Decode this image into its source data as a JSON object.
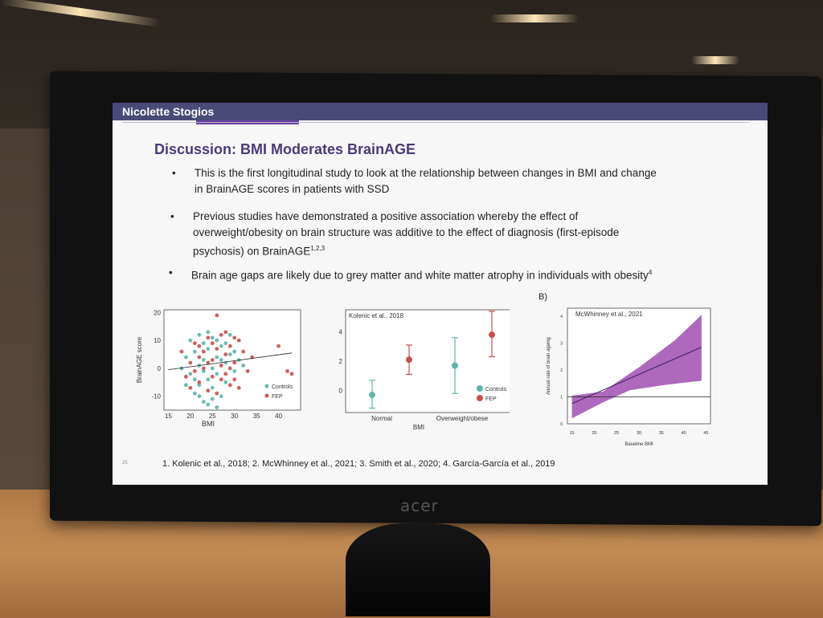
{
  "monitor": {
    "brand": "acer"
  },
  "slide": {
    "presenter": "Nicolette Stogios",
    "title": "Discussion: BMI Moderates BrainAGE",
    "bullets": [
      {
        "line1": "This is the first longitudinal study to look at the relationship between changes in BMI and change",
        "line2": "in BrainAGE scores in patients with SSD"
      },
      {
        "line1": "Previous studies have demonstrated a positive association whereby the effect of",
        "line2": "overweight/obesity on brain structure was additive to the effect of diagnosis (first-episode",
        "line3": "psychosis) on BrainAGE",
        "sup": "1,2,3"
      },
      {
        "line1": "Brain age gaps are likely due to grey matter and white matter atrophy in individuals with obesity",
        "sup": "4"
      }
    ],
    "panel_b_label": "B)",
    "footnote": "1.   Kolenic et al., 2018; 2. McWhinney et al., 2021; 3. Smith et al., 2020; 4. García-García et al., 2019",
    "page_number": "25"
  },
  "colors": {
    "controls": "#5fb3ad",
    "fep": "#c8504a",
    "band": "#a04fb0",
    "title": "#4b3a7a"
  },
  "chart_data": [
    {
      "type": "scatter",
      "ylabel": "BrainAGE score",
      "xlabel": "BMI",
      "xticks": [
        "15",
        "20",
        "25",
        "30",
        "35",
        "40"
      ],
      "yticks": [
        "20",
        "10",
        "0",
        "-10"
      ],
      "xlim": [
        14,
        45
      ],
      "ylim": [
        -15,
        21
      ],
      "legend": [
        "Controls",
        "FEP"
      ],
      "trend": [
        [
          15,
          -0.5
        ],
        [
          43,
          5.5
        ]
      ],
      "series": [
        {
          "name": "Controls",
          "points": [
            [
              19,
              4
            ],
            [
              20,
              -2
            ],
            [
              21,
              6
            ],
            [
              21,
              -9
            ],
            [
              22,
              1
            ],
            [
              22,
              -6
            ],
            [
              23,
              9
            ],
            [
              23,
              3
            ],
            [
              23,
              -12
            ],
            [
              24,
              -4
            ],
            [
              24,
              7
            ],
            [
              25,
              0
            ],
            [
              25,
              11
            ],
            [
              25,
              -7
            ],
            [
              26,
              4
            ],
            [
              26,
              -2
            ],
            [
              27,
              8
            ],
            [
              27,
              -10
            ],
            [
              28,
              2
            ],
            [
              28,
              -5
            ],
            [
              29,
              5
            ],
            [
              29,
              12
            ],
            [
              30,
              -1
            ],
            [
              31,
              3
            ],
            [
              32,
              1
            ],
            [
              20,
              10
            ],
            [
              22,
              12
            ],
            [
              24,
              -13
            ],
            [
              26,
              -14
            ],
            [
              18,
              0
            ],
            [
              21,
              -4
            ],
            [
              23,
              -1
            ],
            [
              27,
              3
            ],
            [
              30,
              6
            ],
            [
              22,
              -10
            ],
            [
              25,
              -11
            ],
            [
              28,
              9
            ],
            [
              24,
              13
            ],
            [
              19,
              -6
            ],
            [
              26,
              10
            ]
          ]
        },
        {
          "name": "FEP",
          "points": [
            [
              18,
              6
            ],
            [
              19,
              -3
            ],
            [
              20,
              2
            ],
            [
              21,
              9
            ],
            [
              22,
              -5
            ],
            [
              22,
              4
            ],
            [
              23,
              0
            ],
            [
              24,
              11
            ],
            [
              24,
              -8
            ],
            [
              25,
              3
            ],
            [
              25,
              -3
            ],
            [
              26,
              7
            ],
            [
              26,
              -9
            ],
            [
              27,
              1
            ],
            [
              27,
              12
            ],
            [
              28,
              -2
            ],
            [
              28,
              5
            ],
            [
              29,
              -6
            ],
            [
              29,
              8
            ],
            [
              30,
              2
            ],
            [
              30,
              -4
            ],
            [
              31,
              10
            ],
            [
              32,
              6
            ],
            [
              33,
              -1
            ],
            [
              34,
              4
            ],
            [
              40,
              8
            ],
            [
              42,
              -1
            ],
            [
              43,
              -2
            ],
            [
              26,
              19
            ],
            [
              23,
              6
            ],
            [
              21,
              -1
            ],
            [
              24,
              2
            ],
            [
              27,
              -4
            ],
            [
              29,
              0
            ],
            [
              31,
              -7
            ],
            [
              22,
              8
            ],
            [
              25,
              9
            ],
            [
              28,
              13
            ],
            [
              20,
              -7
            ],
            [
              30,
              11
            ]
          ]
        }
      ]
    },
    {
      "type": "scatter",
      "title": "Kolenic et al., 2018",
      "xlabel": "BMI",
      "categories": [
        "Normal",
        "Overweight/obese"
      ],
      "yticks": [
        "4",
        "2",
        "0"
      ],
      "ylim": [
        -1.5,
        5.5
      ],
      "legend": [
        "Controls",
        "FEP"
      ],
      "series": [
        {
          "name": "Controls",
          "values": [
            -0.3,
            1.7
          ],
          "ci_low": [
            -1.2,
            -0.2
          ],
          "ci_high": [
            0.7,
            3.6
          ]
        },
        {
          "name": "FEP",
          "values": [
            2.1,
            3.8
          ],
          "ci_low": [
            1.1,
            2.3
          ],
          "ci_high": [
            3.1,
            5.4
          ]
        }
      ]
    },
    {
      "type": "area",
      "title": "McWhinney et al., 2021",
      "xlabel": "Baseline BMI",
      "ylabel": "Annual rate of brain ageing",
      "xticks": [
        "15",
        "20",
        "25",
        "30",
        "35",
        "40",
        "45"
      ],
      "yticks": [
        "4",
        "3",
        "2",
        "1",
        "0"
      ],
      "xlim": [
        14,
        46
      ],
      "ylim": [
        0,
        4.3
      ],
      "reference_y": 1,
      "line": [
        [
          15,
          0.75
        ],
        [
          44,
          2.85
        ]
      ],
      "band_upper": [
        [
          15,
          1.05
        ],
        [
          22,
          1.2
        ],
        [
          30,
          2.1
        ],
        [
          38,
          3.1
        ],
        [
          44,
          4.05
        ]
      ],
      "band_lower": [
        [
          15,
          0.2
        ],
        [
          22,
          0.8
        ],
        [
          28,
          1.25
        ],
        [
          36,
          1.45
        ],
        [
          44,
          1.6
        ]
      ]
    }
  ]
}
